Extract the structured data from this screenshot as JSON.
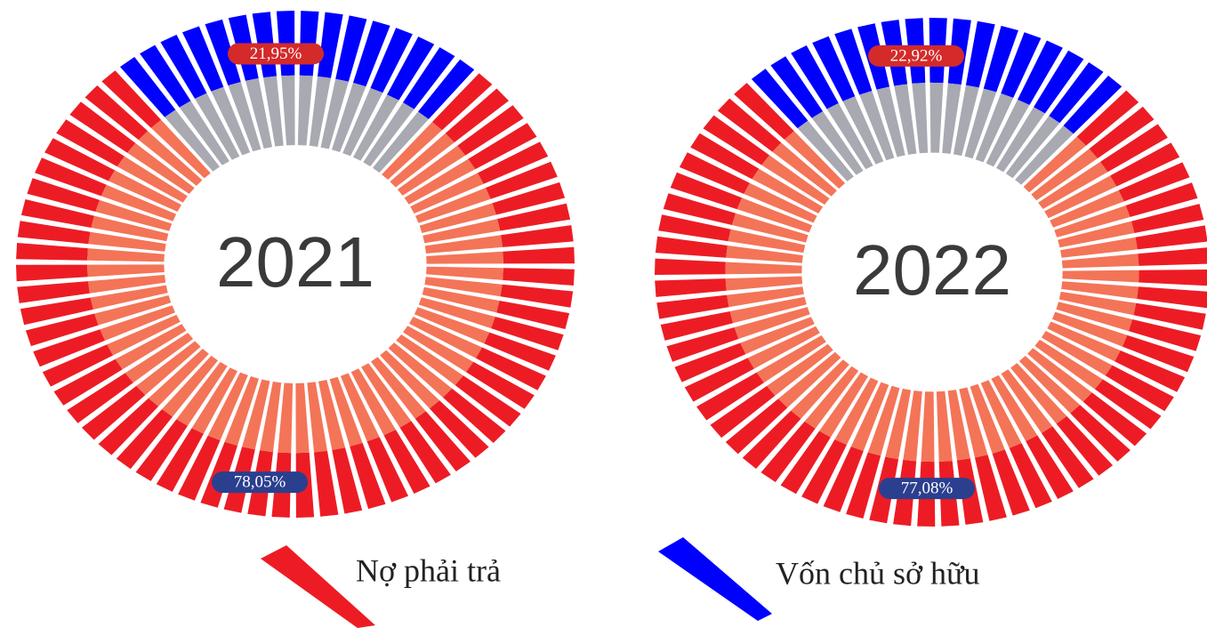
{
  "chart_data": [
    {
      "type": "pie",
      "title": "2021",
      "categories": [
        "Nợ phải trả",
        "Vốn chủ sở hữu"
      ],
      "values": [
        78.05,
        21.95
      ],
      "value_labels": [
        "78,05%",
        "21,95%"
      ],
      "colors": [
        "#ed1c24",
        "#0000ff"
      ]
    },
    {
      "type": "pie",
      "title": "2022",
      "categories": [
        "Nợ phải trả",
        "Vốn chủ sở hữu"
      ],
      "values": [
        77.08,
        22.92
      ],
      "value_labels": [
        "77,08%",
        "22,92%"
      ],
      "colors": [
        "#ed1c24",
        "#0000ff"
      ]
    }
  ]
}
